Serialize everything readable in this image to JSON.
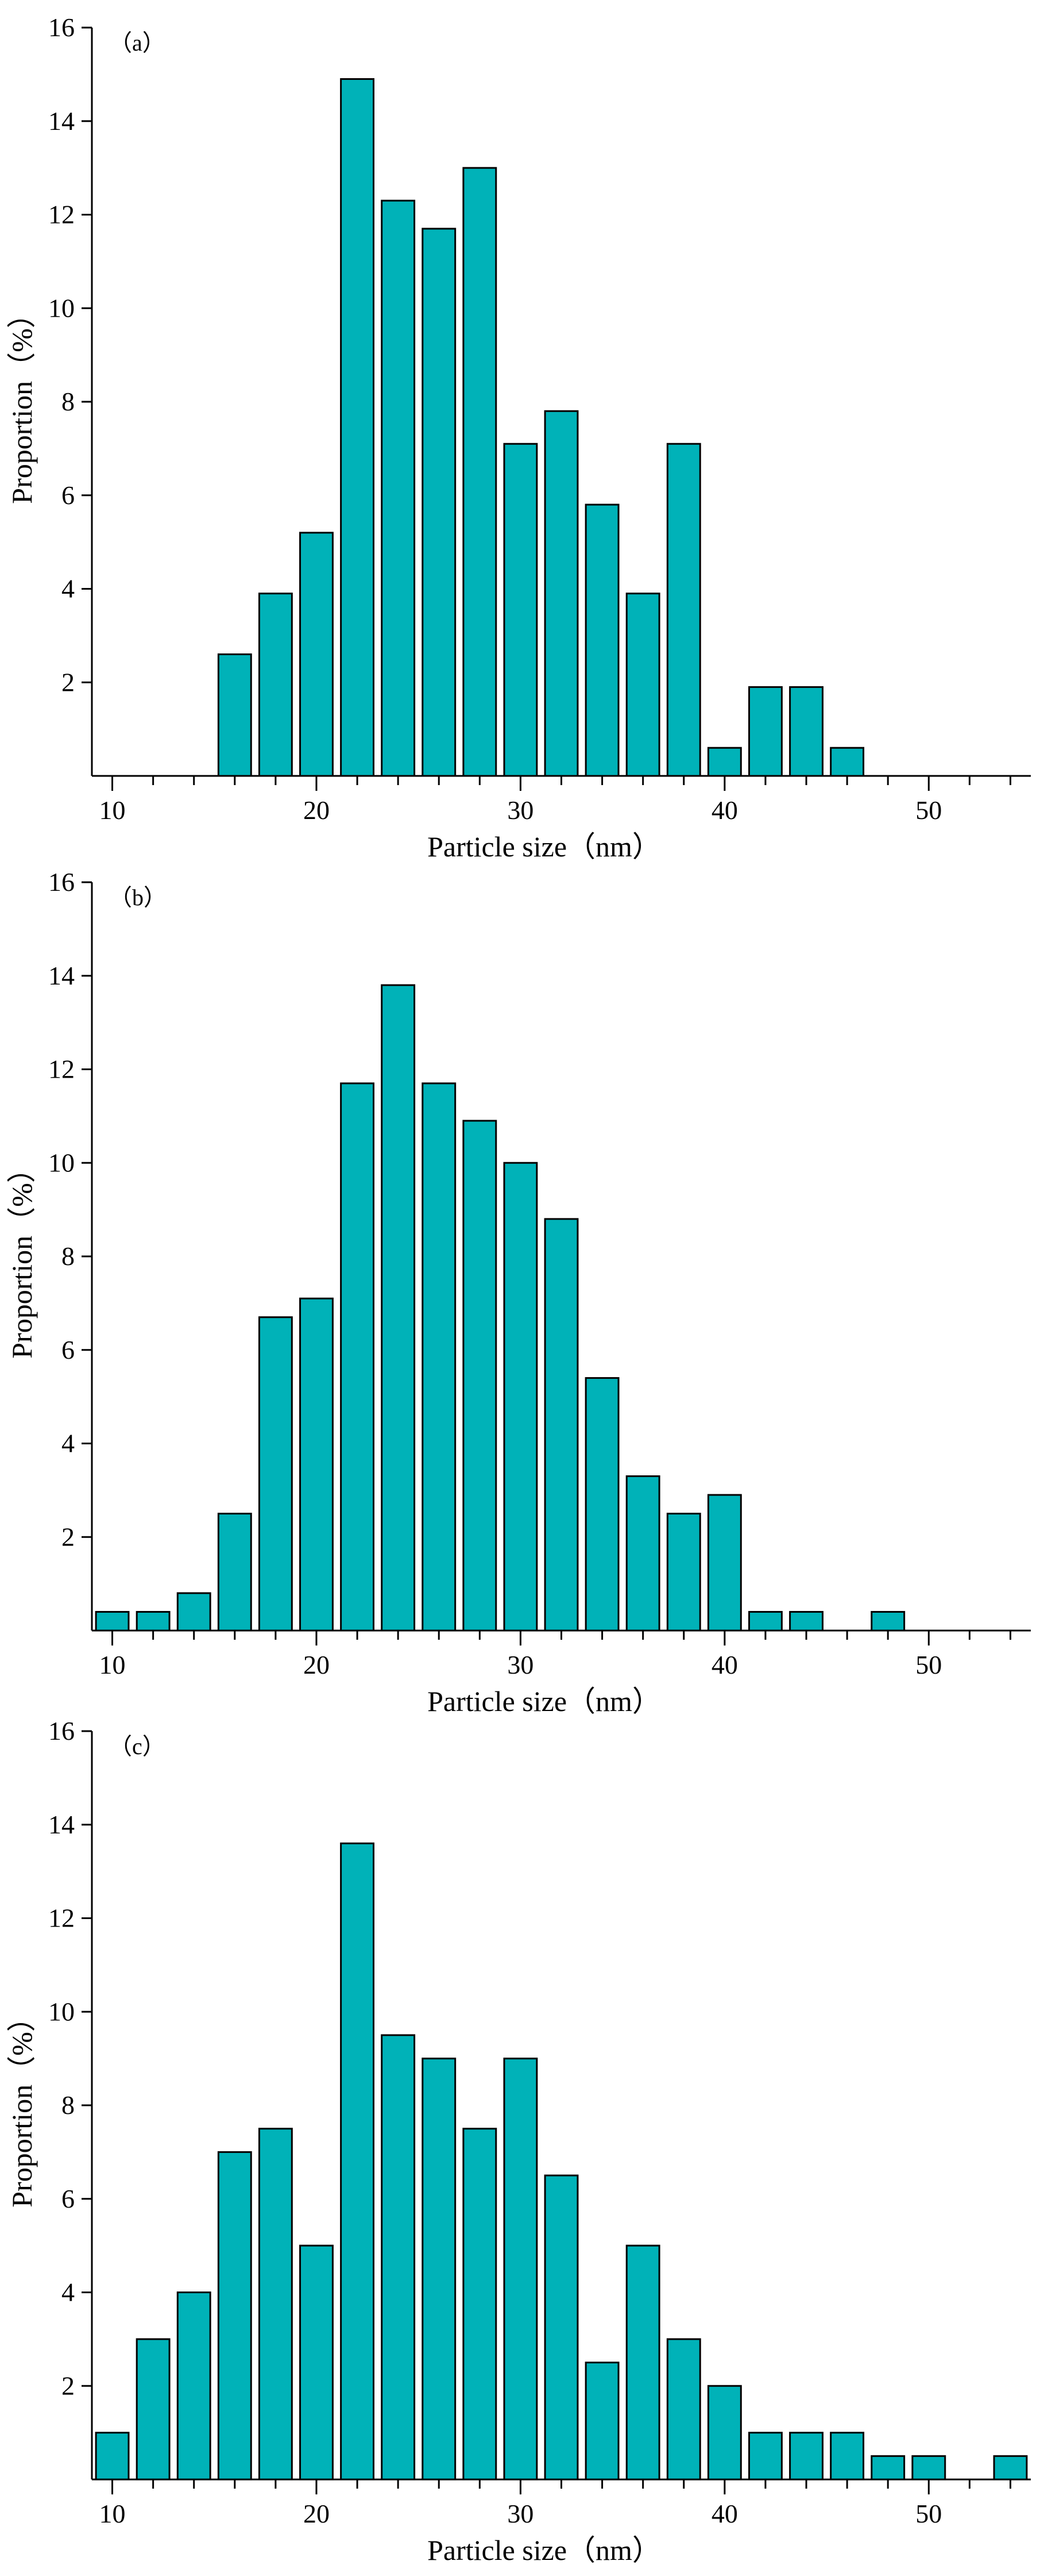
{
  "figure": {
    "bar_color": "#00b2b8",
    "bar_edge_color": "#000000"
  },
  "chart_data": [
    {
      "type": "bar",
      "panel_label": "（a）",
      "title": "",
      "xlabel": "Particle size（nm）",
      "ylabel": "Proportion（%）",
      "xlim": [
        9,
        55
      ],
      "ylim": [
        0,
        16
      ],
      "xticks": [
        10,
        20,
        30,
        40,
        50
      ],
      "yticks": [
        2,
        4,
        6,
        8,
        10,
        12,
        14,
        16
      ],
      "x": [
        16,
        18,
        20,
        22,
        24,
        26,
        28,
        30,
        32,
        34,
        36,
        38,
        40,
        42,
        44,
        46
      ],
      "values": [
        2.6,
        3.9,
        5.2,
        14.9,
        12.3,
        11.7,
        13.0,
        7.1,
        7.8,
        5.8,
        3.9,
        7.1,
        0.6,
        1.9,
        1.9,
        0.6
      ]
    },
    {
      "type": "bar",
      "panel_label": "（b）",
      "title": "",
      "xlabel": "Particle size（nm）",
      "ylabel": "Proportion（%）",
      "xlim": [
        9,
        55
      ],
      "ylim": [
        0,
        16
      ],
      "xticks": [
        10,
        20,
        30,
        40,
        50
      ],
      "yticks": [
        2,
        4,
        6,
        8,
        10,
        12,
        14,
        16
      ],
      "x": [
        10,
        12,
        14,
        16,
        18,
        20,
        22,
        24,
        26,
        28,
        30,
        32,
        34,
        36,
        38,
        40,
        42,
        44,
        48
      ],
      "values": [
        0.4,
        0.4,
        0.8,
        2.5,
        6.7,
        7.1,
        11.7,
        13.8,
        11.7,
        10.9,
        10.0,
        8.8,
        5.4,
        3.3,
        2.5,
        2.9,
        0.4,
        0.4,
        0.4
      ]
    },
    {
      "type": "bar",
      "panel_label": "（c）",
      "title": "",
      "xlabel": "Particle size（nm）",
      "ylabel": "Proportion（%）",
      "xlim": [
        9,
        55
      ],
      "ylim": [
        0,
        16
      ],
      "xticks": [
        10,
        20,
        30,
        40,
        50
      ],
      "yticks": [
        2,
        4,
        6,
        8,
        10,
        12,
        14,
        16
      ],
      "x": [
        10,
        12,
        14,
        16,
        18,
        20,
        22,
        24,
        26,
        28,
        30,
        32,
        34,
        36,
        38,
        40,
        42,
        44,
        46,
        48,
        50,
        54
      ],
      "values": [
        1.0,
        3.0,
        4.0,
        7.0,
        7.5,
        5.0,
        13.6,
        9.5,
        9.0,
        7.5,
        9.0,
        6.5,
        2.5,
        5.0,
        3.0,
        2.0,
        1.0,
        1.0,
        1.0,
        0.5,
        0.5,
        0.5
      ]
    }
  ]
}
